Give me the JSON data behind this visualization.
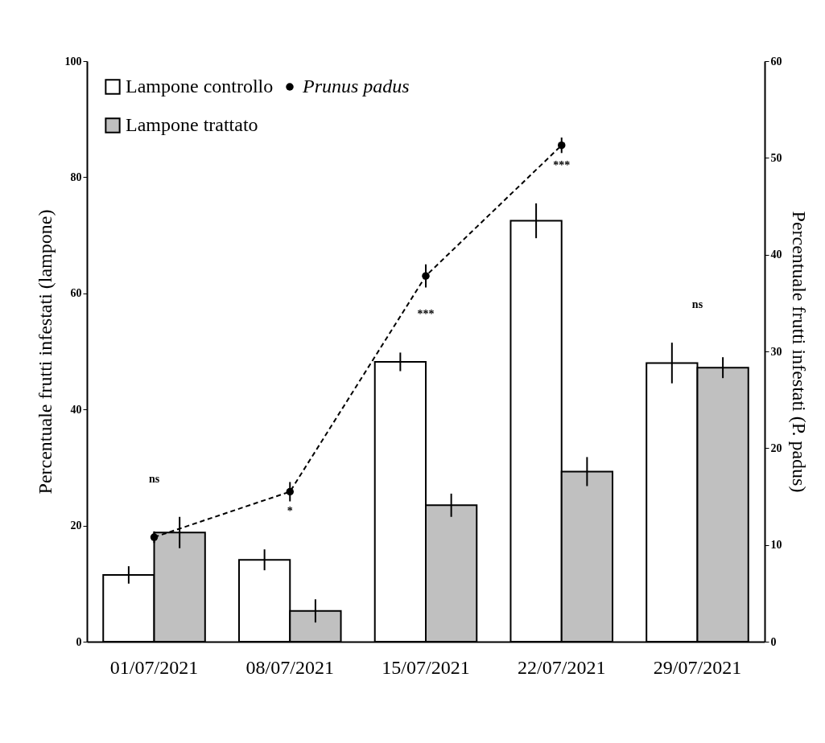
{
  "chart_data": {
    "type": "bar",
    "ylabel": "Percentuale frutti infestati  (lampone)",
    "y2label": "Percentuale frutti infestati (P. padus)",
    "categories": [
      "01/07/2021",
      "08/07/2021",
      "15/07/2021",
      "22/07/2021",
      "29/07/2021"
    ],
    "series": [
      {
        "name": "Lampone controllo",
        "color": "#ffffff",
        "values": [
          11.5,
          14.1,
          48.2,
          72.5,
          48.0
        ],
        "errors": [
          1.5,
          1.8,
          1.6,
          3.0,
          3.5
        ]
      },
      {
        "name": "Lampone trattato",
        "color": "#c0c0c0",
        "values": [
          18.8,
          5.3,
          23.5,
          29.3,
          47.2
        ],
        "errors": [
          2.7,
          2.0,
          2.0,
          2.5,
          1.8
        ]
      },
      {
        "name": "Prunus padus",
        "type": "line",
        "axis": "y2",
        "color": "#000000",
        "marker": "circle",
        "line_style": "dashed",
        "values": [
          10.8,
          15.5,
          37.8,
          51.3,
          null
        ],
        "errors": [
          0.6,
          1.0,
          1.2,
          0.8,
          null
        ]
      }
    ],
    "ylim": [
      0,
      100
    ],
    "yticks": [
      0,
      20,
      40,
      60,
      80,
      100
    ],
    "y2lim": [
      0,
      60
    ],
    "y2ticks": [
      0,
      10,
      20,
      30,
      40,
      50,
      60
    ],
    "grid": false,
    "legend": "top left",
    "annotations": [
      "ns",
      "*",
      "***",
      "***",
      "ns"
    ]
  }
}
